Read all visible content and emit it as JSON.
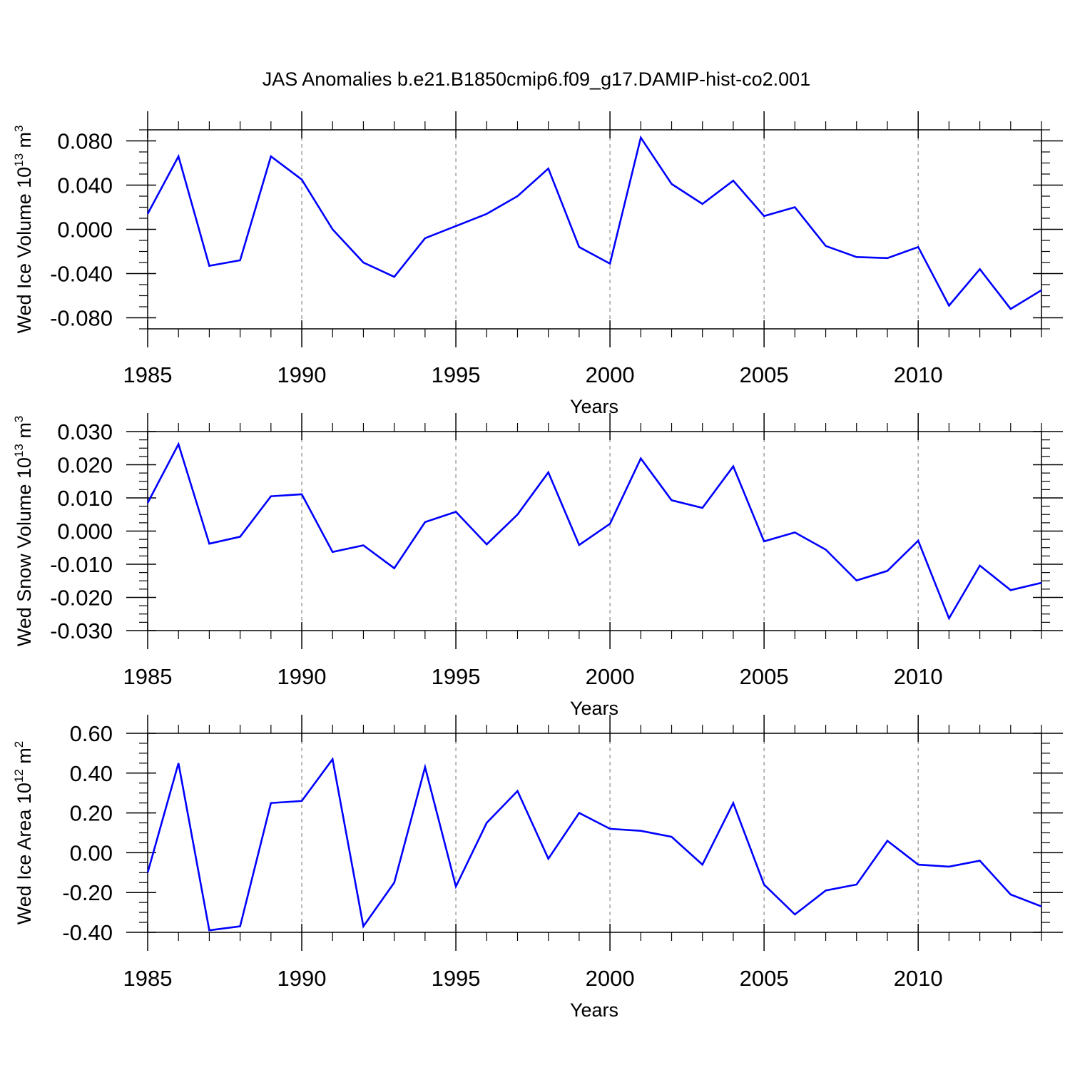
{
  "title": "JAS Anomalies b.e21.B1850cmip6.f09_g17.DAMIP-hist-co2.001",
  "colors": {
    "line": "#0000ff",
    "axis": "#000000",
    "grid": "#888888"
  },
  "chart_data": [
    {
      "type": "line",
      "title": "JAS Anomalies b.e21.B1850cmip6.f09_g17.DAMIP-hist-co2.001",
      "xlabel": "Years",
      "ylabel": {
        "main": "Wed Ice Volume 10",
        "exp": "13",
        "unit": " m",
        "unit_exp": "3"
      },
      "xlim": [
        1985,
        2014
      ],
      "ylim": [
        -0.09,
        0.09
      ],
      "xticks": [
        "1985",
        "1990",
        "1995",
        "2000",
        "2005",
        "2010"
      ],
      "yticks": [
        "0.080",
        "0.040",
        "0.000",
        "-0.040",
        "-0.080"
      ],
      "ytick_values": [
        0.08,
        0.04,
        0.0,
        -0.04,
        -0.08
      ],
      "grid": "vertical dashed at labeled years",
      "x": [
        1985,
        1986,
        1987,
        1988,
        1989,
        1990,
        1991,
        1992,
        1993,
        1994,
        1995,
        1996,
        1997,
        1998,
        1999,
        2000,
        2001,
        2002,
        2003,
        2004,
        2005,
        2006,
        2007,
        2008,
        2009,
        2010,
        2011,
        2012,
        2013,
        2014
      ],
      "values": [
        0.014,
        0.066,
        -0.033,
        -0.028,
        0.066,
        0.045,
        0.0,
        -0.03,
        -0.043,
        -0.008,
        0.003,
        0.014,
        0.03,
        0.055,
        -0.016,
        -0.031,
        0.083,
        0.041,
        0.023,
        0.044,
        0.012,
        0.02,
        -0.015,
        -0.025,
        -0.026,
        -0.016,
        -0.069,
        -0.036,
        -0.072,
        -0.055
      ]
    },
    {
      "type": "line",
      "xlabel": "Years",
      "ylabel": {
        "main": "Wed Snow Volume 10",
        "exp": "13",
        "unit": " m",
        "unit_exp": "3"
      },
      "xlim": [
        1985,
        2014
      ],
      "ylim": [
        -0.03,
        0.03
      ],
      "xticks": [
        "1985",
        "1990",
        "1995",
        "2000",
        "2005",
        "2010"
      ],
      "yticks": [
        "0.030",
        "0.020",
        "0.010",
        "0.000",
        "-0.010",
        "-0.020",
        "-0.030"
      ],
      "ytick_values": [
        0.03,
        0.02,
        0.01,
        0.0,
        -0.01,
        -0.02,
        -0.03
      ],
      "grid": "vertical dashed at labeled years",
      "x": [
        1985,
        1986,
        1987,
        1988,
        1989,
        1990,
        1991,
        1992,
        1993,
        1994,
        1995,
        1996,
        1997,
        1998,
        1999,
        2000,
        2001,
        2002,
        2003,
        2004,
        2005,
        2006,
        2007,
        2008,
        2009,
        2010,
        2011,
        2012,
        2013,
        2014
      ],
      "values": [
        0.0085,
        0.0262,
        -0.0038,
        -0.0017,
        0.0105,
        0.0111,
        -0.0063,
        -0.0043,
        -0.0112,
        0.0027,
        0.0058,
        -0.004,
        0.005,
        0.0177,
        -0.0042,
        0.0022,
        0.0219,
        0.0093,
        0.007,
        0.0195,
        -0.0031,
        -0.0004,
        -0.0056,
        -0.0149,
        -0.012,
        -0.0029,
        -0.0263,
        -0.0104,
        -0.0178,
        -0.0156
      ]
    },
    {
      "type": "line",
      "xlabel": "Years",
      "ylabel": {
        "main": "Wed Ice Area 10",
        "exp": "12",
        "unit": " m",
        "unit_exp": "2"
      },
      "xlim": [
        1985,
        2014
      ],
      "ylim": [
        -0.4,
        0.6
      ],
      "xticks": [
        "1985",
        "1990",
        "1995",
        "2000",
        "2005",
        "2010"
      ],
      "yticks": [
        "0.60",
        "0.40",
        "0.20",
        "0.00",
        "-0.20",
        "-0.40"
      ],
      "ytick_values": [
        0.6,
        0.4,
        0.2,
        0.0,
        -0.2,
        -0.4
      ],
      "grid": "vertical dashed at labeled years",
      "x": [
        1985,
        1986,
        1987,
        1988,
        1989,
        1990,
        1991,
        1992,
        1993,
        1994,
        1995,
        1996,
        1997,
        1998,
        1999,
        2000,
        2001,
        2002,
        2003,
        2004,
        2005,
        2006,
        2007,
        2008,
        2009,
        2010,
        2011,
        2012,
        2013,
        2014
      ],
      "values": [
        -0.1,
        0.45,
        -0.39,
        -0.37,
        0.25,
        0.26,
        0.47,
        -0.37,
        -0.15,
        0.43,
        -0.17,
        0.15,
        0.31,
        -0.03,
        0.2,
        0.12,
        0.11,
        0.08,
        -0.06,
        0.25,
        -0.16,
        -0.31,
        -0.19,
        -0.16,
        0.06,
        -0.06,
        -0.07,
        -0.04,
        -0.21,
        -0.27
      ]
    }
  ]
}
